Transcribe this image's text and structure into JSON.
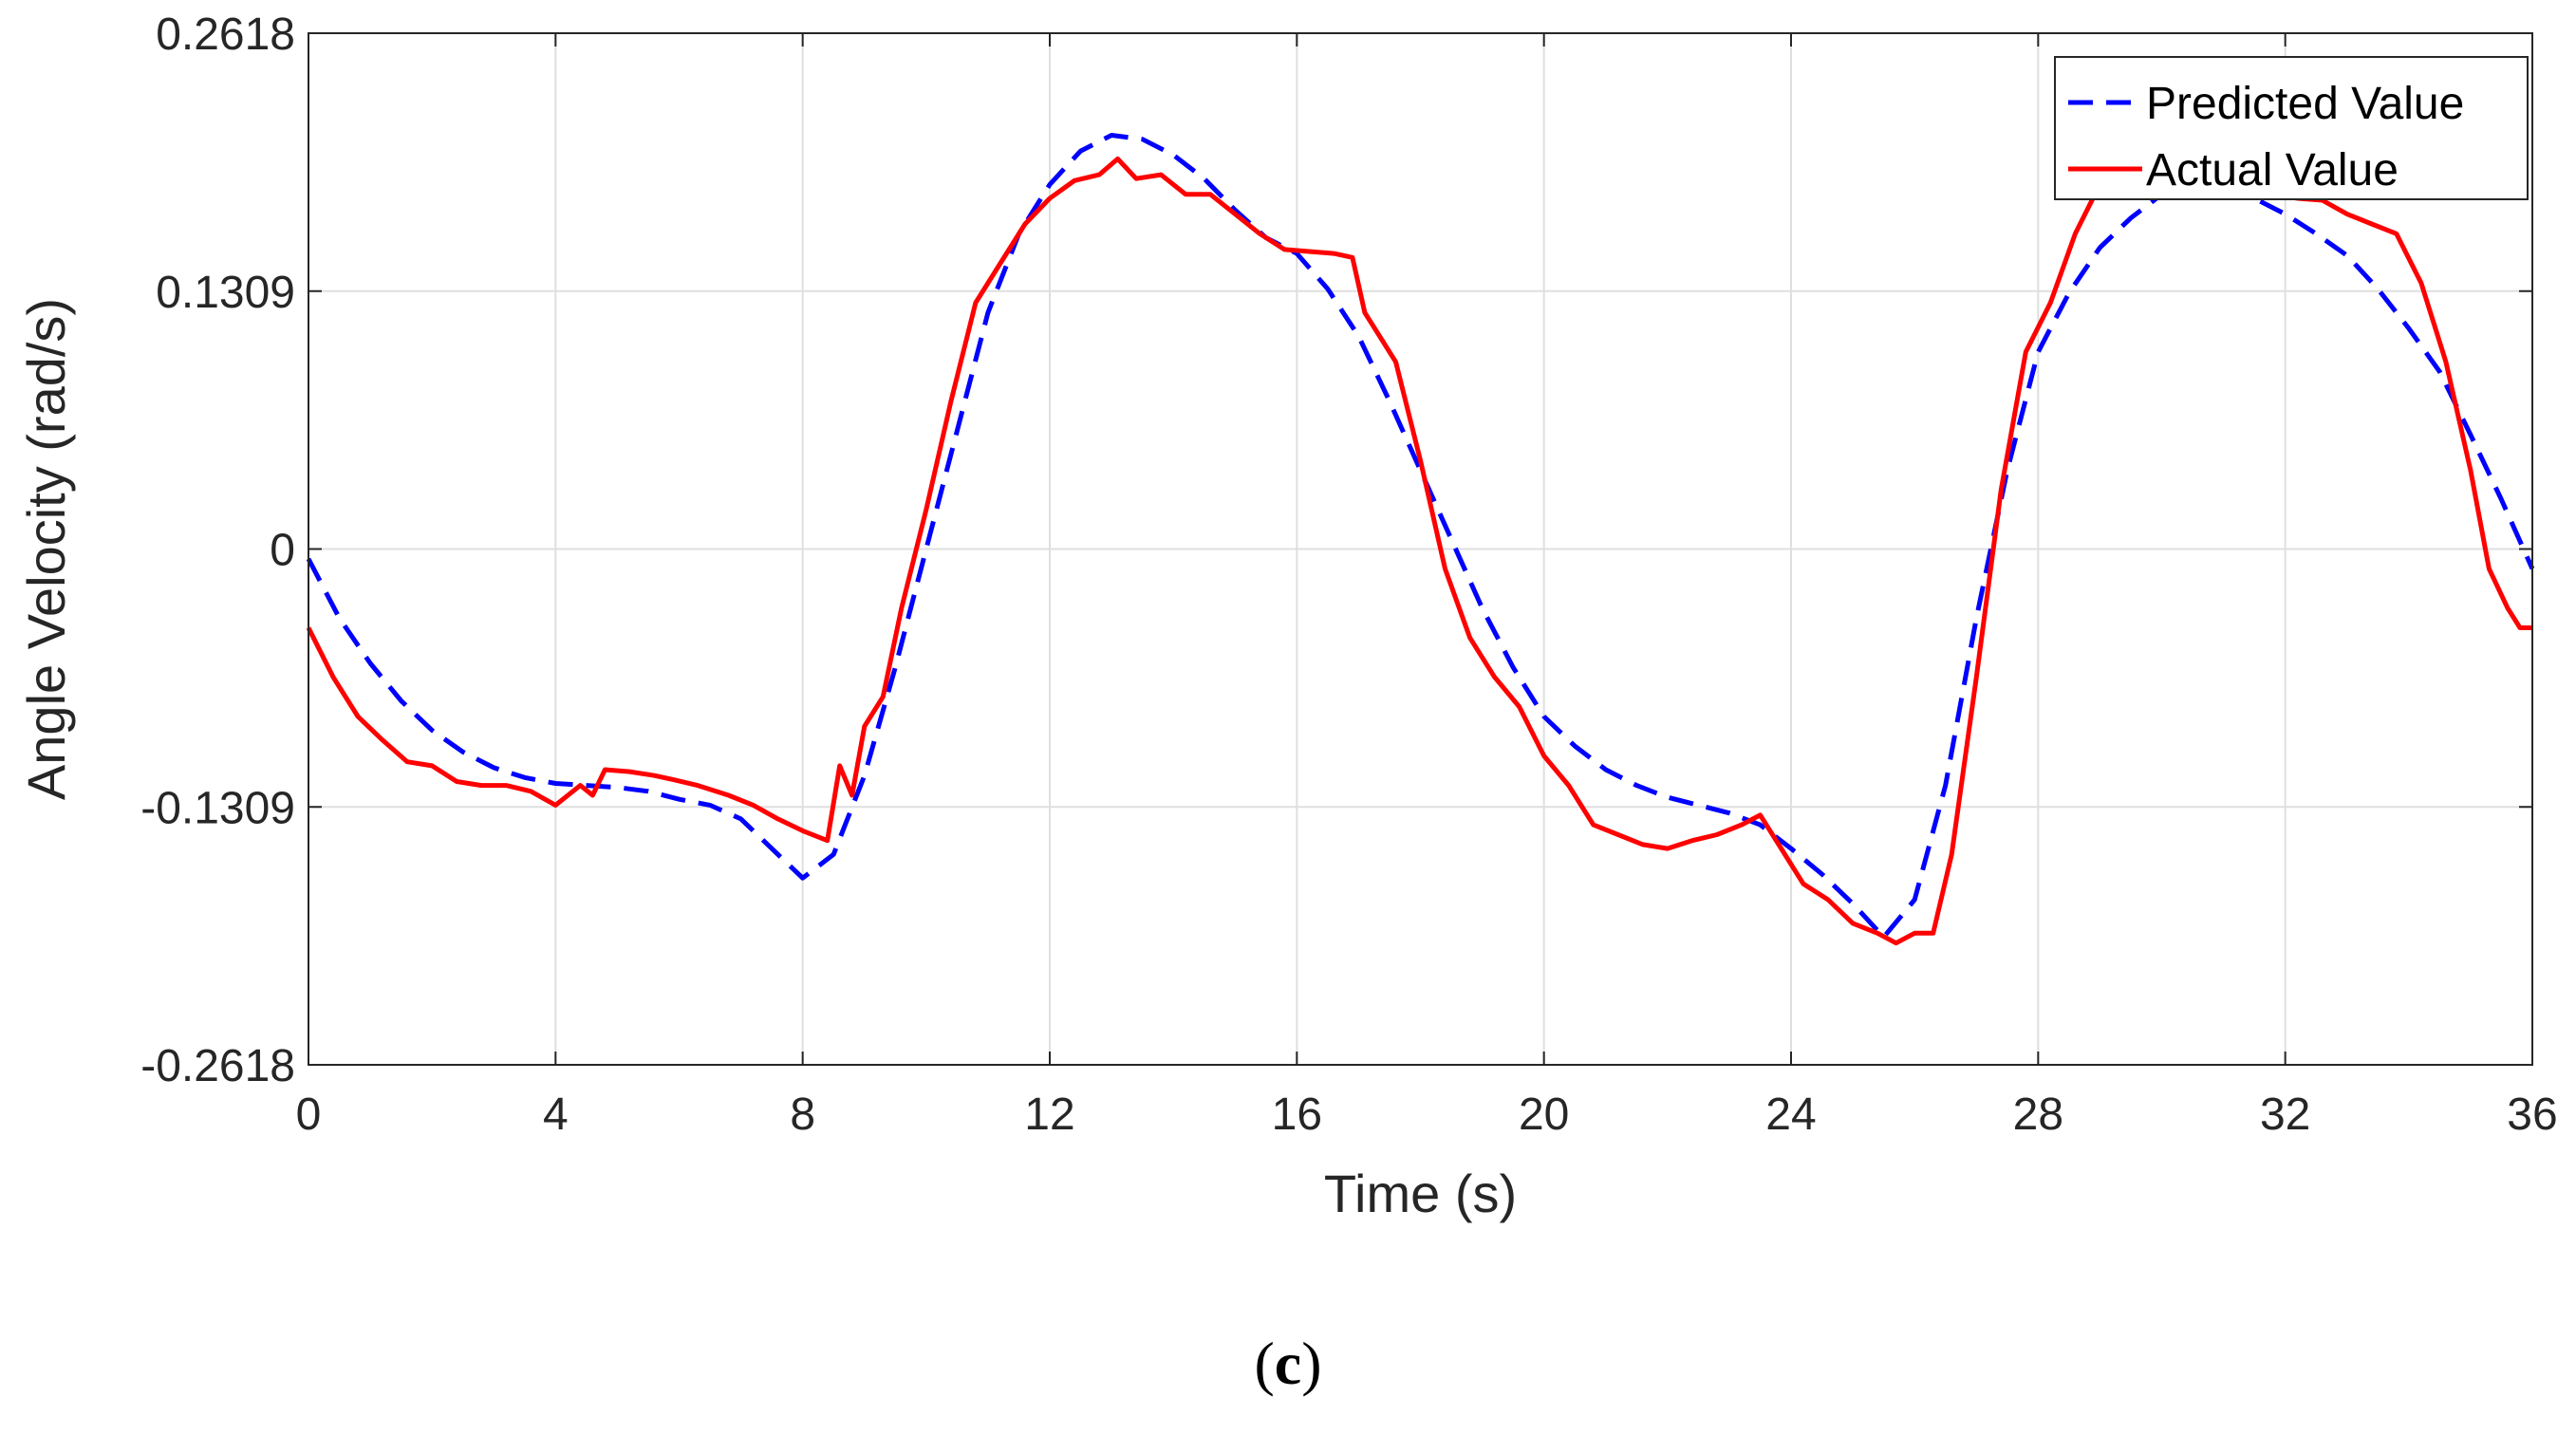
{
  "chart_data": {
    "type": "line",
    "title": "",
    "xlabel": "Time (s)",
    "ylabel": "Angle Velocity (rad/s)",
    "xlim": [
      0,
      36
    ],
    "ylim": [
      -0.2618,
      0.2618
    ],
    "xticks": [
      0,
      4,
      8,
      12,
      16,
      20,
      24,
      28,
      32,
      36
    ],
    "yticks": [
      -0.2618,
      -0.1309,
      0,
      0.1309,
      0.2618
    ],
    "ytick_labels": [
      "-0.2618",
      "-0.1309",
      "0",
      "0.1309",
      "0.2618"
    ],
    "grid": true,
    "legend_position": "top-right",
    "series": [
      {
        "name": "Predicted Value",
        "color": "#0000ff",
        "style": "dashed",
        "x": [
          0,
          0.5,
          1,
          1.5,
          2,
          2.5,
          3,
          3.5,
          4,
          4.5,
          5,
          5.5,
          6,
          6.5,
          7,
          7.5,
          8,
          8.5,
          9,
          9.5,
          10,
          10.5,
          11,
          11.5,
          12,
          12.5,
          13,
          13.5,
          14,
          14.5,
          15,
          15.5,
          16,
          16.5,
          17,
          17.5,
          18,
          18.5,
          19,
          19.5,
          20,
          20.5,
          21,
          21.5,
          22,
          22.5,
          23,
          23.5,
          24,
          24.5,
          25,
          25.5,
          26,
          26.5,
          27,
          27.5,
          28,
          28.5,
          29,
          29.5,
          30,
          30.5,
          31,
          31.5,
          32,
          32.5,
          33,
          33.5,
          34,
          34.5,
          35,
          35.5,
          36
        ],
        "values": [
          -0.005,
          -0.035,
          -0.058,
          -0.077,
          -0.092,
          -0.103,
          -0.111,
          -0.116,
          -0.119,
          -0.12,
          -0.121,
          -0.123,
          -0.127,
          -0.13,
          -0.137,
          -0.152,
          -0.167,
          -0.155,
          -0.115,
          -0.06,
          0.0,
          0.06,
          0.12,
          0.16,
          0.185,
          0.202,
          0.21,
          0.208,
          0.2,
          0.188,
          0.172,
          0.158,
          0.15,
          0.132,
          0.108,
          0.075,
          0.04,
          0.005,
          -0.03,
          -0.06,
          -0.085,
          -0.1,
          -0.112,
          -0.12,
          -0.126,
          -0.13,
          -0.134,
          -0.14,
          -0.152,
          -0.165,
          -0.18,
          -0.197,
          -0.178,
          -0.12,
          -0.035,
          0.04,
          0.1,
          0.13,
          0.153,
          0.168,
          0.18,
          0.183,
          0.182,
          0.178,
          0.17,
          0.16,
          0.149,
          0.132,
          0.112,
          0.09,
          0.058,
          0.025,
          -0.01
        ]
      },
      {
        "name": "Actual Value",
        "color": "#ff0000",
        "style": "solid",
        "x": [
          0,
          0.4,
          0.8,
          1.2,
          1.6,
          2,
          2.4,
          2.8,
          3.2,
          3.6,
          4,
          4.4,
          4.6,
          4.8,
          5.2,
          5.6,
          5.9,
          6.3,
          6.8,
          7.2,
          7.6,
          8,
          8.4,
          8.6,
          8.8,
          9,
          9.3,
          9.6,
          10,
          10.4,
          10.8,
          11.2,
          11.6,
          12,
          12.4,
          12.8,
          13.1,
          13.4,
          13.8,
          14.2,
          14.6,
          15,
          15.4,
          15.8,
          16.2,
          16.6,
          16.9,
          17.1,
          17.3,
          17.6,
          18,
          18.4,
          18.8,
          19.2,
          19.6,
          20,
          20.4,
          20.8,
          21.2,
          21.6,
          22,
          22.4,
          22.8,
          23.2,
          23.5,
          23.8,
          24.2,
          24.6,
          25,
          25.4,
          25.7,
          26,
          26.3,
          26.6,
          27,
          27.4,
          27.8,
          28.2,
          28.6,
          29,
          29.4,
          29.8,
          30.2,
          30.6,
          31,
          31.4,
          31.8,
          32.2,
          32.6,
          33,
          33.4,
          33.8,
          34.2,
          34.6,
          35,
          35.3,
          35.6,
          35.8,
          36
        ],
        "values": [
          -0.04,
          -0.065,
          -0.085,
          -0.097,
          -0.108,
          -0.11,
          -0.118,
          -0.12,
          -0.12,
          -0.123,
          -0.13,
          -0.12,
          -0.125,
          -0.112,
          -0.113,
          -0.115,
          -0.117,
          -0.12,
          -0.125,
          -0.13,
          -0.137,
          -0.143,
          -0.148,
          -0.11,
          -0.125,
          -0.09,
          -0.075,
          -0.03,
          0.02,
          0.075,
          0.125,
          0.145,
          0.165,
          0.178,
          0.187,
          0.19,
          0.198,
          0.188,
          0.19,
          0.18,
          0.18,
          0.17,
          0.16,
          0.152,
          0.151,
          0.15,
          0.148,
          0.12,
          0.11,
          0.095,
          0.045,
          -0.01,
          -0.045,
          -0.065,
          -0.08,
          -0.105,
          -0.12,
          -0.14,
          -0.145,
          -0.15,
          -0.152,
          -0.148,
          -0.145,
          -0.14,
          -0.135,
          -0.15,
          -0.17,
          -0.178,
          -0.19,
          -0.195,
          -0.2,
          -0.195,
          -0.195,
          -0.155,
          -0.065,
          0.03,
          0.1,
          0.125,
          0.16,
          0.185,
          0.19,
          0.185,
          0.19,
          0.183,
          0.182,
          0.18,
          0.18,
          0.178,
          0.177,
          0.17,
          0.165,
          0.16,
          0.135,
          0.095,
          0.04,
          -0.01,
          -0.03,
          -0.04,
          -0.04
        ]
      }
    ]
  },
  "caption": {
    "open": "(",
    "label": "c",
    "close": ")"
  }
}
